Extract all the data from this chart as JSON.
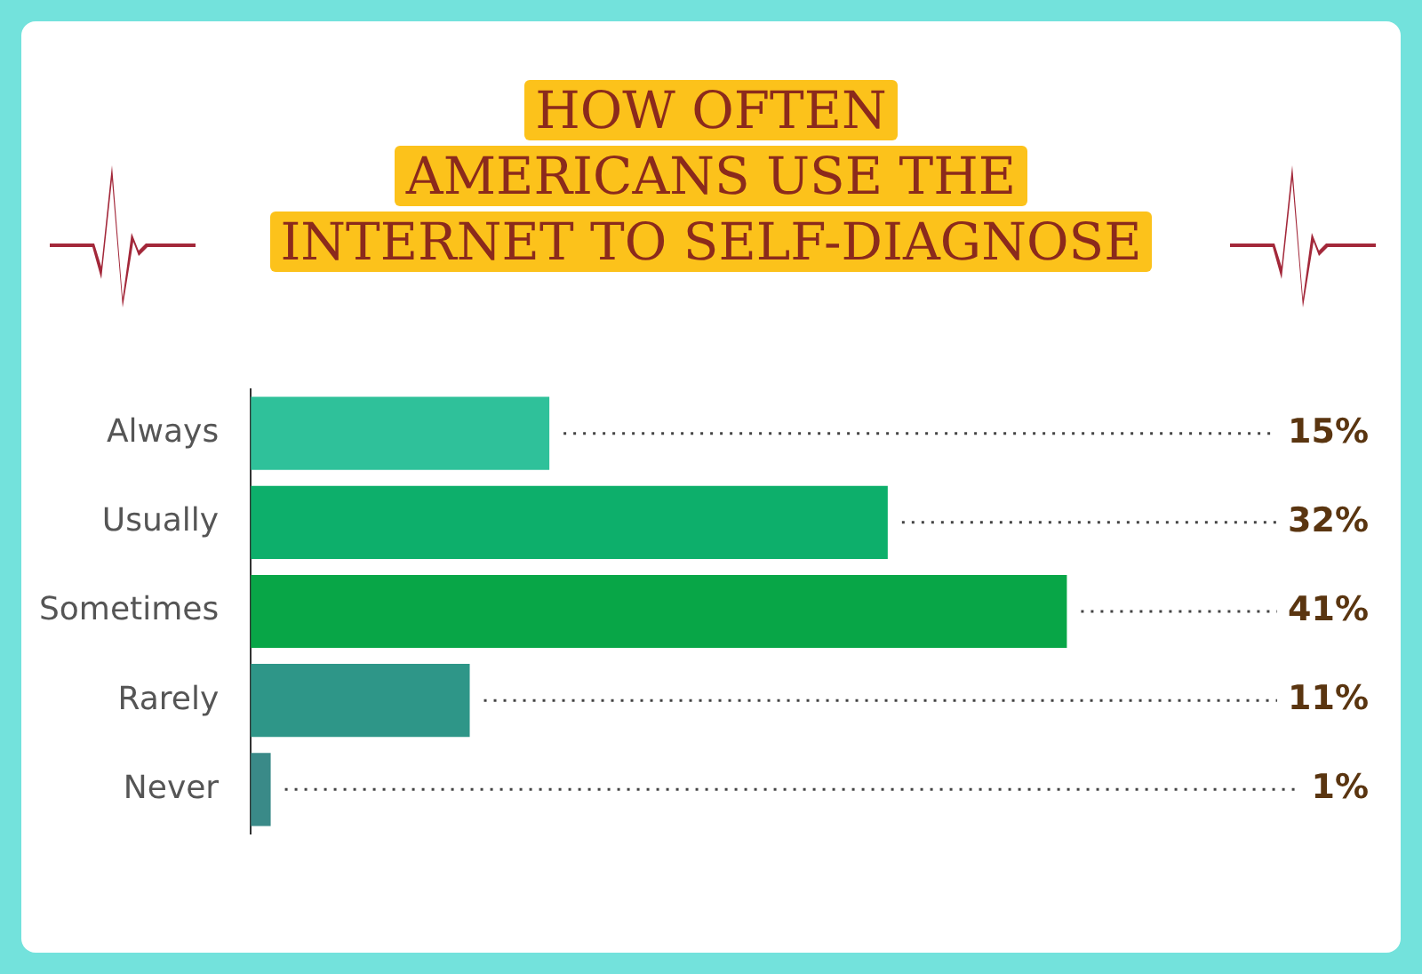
{
  "chart_data": {
    "type": "bar",
    "orientation": "horizontal",
    "title": "HOW OFTEN\nAMERICANS USE THE\nINTERNET TO SELF-DIAGNOSE",
    "categories": [
      "Always",
      "Usually",
      "Sometimes",
      "Rarely",
      "Never"
    ],
    "values": [
      15,
      32,
      41,
      11,
      1
    ],
    "colors": [
      "#2fc19a",
      "#0daf6b",
      "#08a647",
      "#2e9688",
      "#3a8a88"
    ],
    "value_labels": [
      "15%",
      "32%",
      "41%",
      "11%",
      "1%"
    ],
    "legend": false
  }
}
